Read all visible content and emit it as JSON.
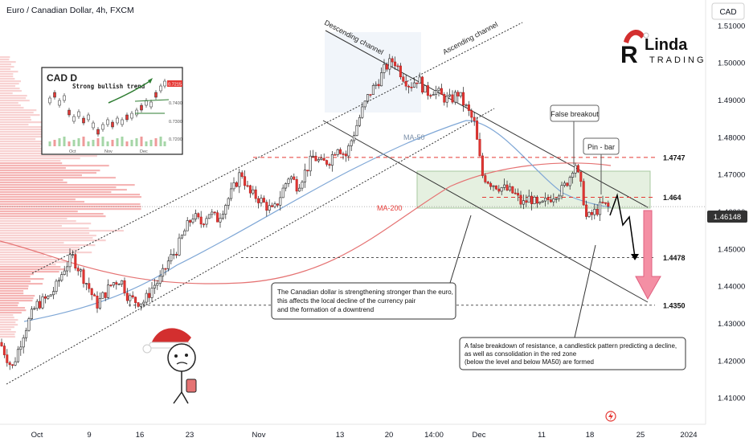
{
  "header": {
    "title": "Euro / Canadian Dollar, 4h, FXCM",
    "currency_badge": "CAD"
  },
  "brand": {
    "logo_letters": "Linda",
    "logo_sub": "TRADING"
  },
  "chart_data": {
    "type": "candlestick",
    "title": "Euro / Canadian Dollar, 4h, FXCM",
    "y_axis": {
      "unit": "CAD",
      "ylim": [
        1.403,
        1.517
      ],
      "ticks": [
        1.41,
        1.42,
        1.43,
        1.44,
        1.45,
        1.46,
        1.47,
        1.48,
        1.49,
        1.5,
        1.51
      ],
      "tick_labels": [
        "1.41000",
        "1.42000",
        "1.43000",
        "1.44000",
        "1.45000",
        "1.46000",
        "1.47000",
        "1.48000",
        "1.49000",
        "1.50000",
        "1.51000"
      ]
    },
    "x_axis": {
      "tick_labels": [
        "Oct",
        "9",
        "16",
        "23",
        "Nov",
        "13",
        "20",
        "14:00",
        "Dec",
        "11",
        "18",
        "25",
        "2024"
      ]
    },
    "current_price": {
      "value": 1.46148,
      "label": "1.46148"
    },
    "levels": [
      {
        "name": "resistance",
        "value": 1.4747,
        "label": "1.4747",
        "color": "#e53935"
      },
      {
        "name": "breakout-level",
        "value": 1.464,
        "label": "1.464",
        "color": "#e53935"
      },
      {
        "name": "target-1",
        "value": 1.4478,
        "label": "1.4478",
        "color": "#555555"
      },
      {
        "name": "target-2",
        "value": 1.435,
        "label": "1.4350",
        "color": "#555555"
      }
    ],
    "indicators": [
      {
        "name": "MA-50",
        "label": "MA-50",
        "color": "#7fa7d6"
      },
      {
        "name": "MA-200",
        "label": "MA-200",
        "color": "#e57373"
      }
    ],
    "channels": [
      {
        "name": "ascending",
        "label": "Ascending channel"
      },
      {
        "name": "descending",
        "label": "Descending channel"
      }
    ],
    "annotations": {
      "false_breakout": "False breakout",
      "pin_bar": "Pin - bar",
      "note_left": [
        "The Canadian dollar is strengthening stronger than the euro,",
        "this affects the local decline of the currency pair",
        "and the formation of a downtrend"
      ],
      "note_right": [
        "A false breakdown of resistance, a candlestick pattern predicting a decline,",
        "as well as consolidation in the red zone",
        "(below the level and below MA50) are formed"
      ]
    },
    "close_path": [
      [
        0,
        1.425
      ],
      [
        15,
        1.418
      ],
      [
        30,
        1.428
      ],
      [
        45,
        1.435
      ],
      [
        60,
        1.437
      ],
      [
        70,
        1.44
      ],
      [
        80,
        1.445
      ],
      [
        90,
        1.448
      ],
      [
        100,
        1.444
      ],
      [
        110,
        1.44
      ],
      [
        120,
        1.435
      ],
      [
        130,
        1.438
      ],
      [
        140,
        1.441
      ],
      [
        150,
        1.442
      ],
      [
        160,
        1.437
      ],
      [
        170,
        1.436
      ],
      [
        180,
        1.436
      ],
      [
        190,
        1.44
      ],
      [
        200,
        1.442
      ],
      [
        210,
        1.447
      ],
      [
        220,
        1.45
      ],
      [
        230,
        1.455
      ],
      [
        240,
        1.459
      ],
      [
        250,
        1.457
      ],
      [
        260,
        1.46
      ],
      [
        270,
        1.458
      ],
      [
        280,
        1.462
      ],
      [
        290,
        1.466
      ],
      [
        300,
        1.471
      ],
      [
        310,
        1.465
      ],
      [
        320,
        1.464
      ],
      [
        330,
        1.462
      ],
      [
        340,
        1.46
      ],
      [
        350,
        1.465
      ],
      [
        360,
        1.47
      ],
      [
        370,
        1.467
      ],
      [
        380,
        1.471
      ],
      [
        390,
        1.475
      ],
      [
        400,
        1.473
      ],
      [
        410,
        1.474
      ],
      [
        420,
        1.478
      ],
      [
        430,
        1.475
      ],
      [
        440,
        1.481
      ],
      [
        450,
        1.487
      ],
      [
        460,
        1.492
      ],
      [
        470,
        1.495
      ],
      [
        480,
        1.499
      ],
      [
        490,
        1.501
      ],
      [
        500,
        1.497
      ],
      [
        510,
        1.494
      ],
      [
        520,
        1.496
      ],
      [
        530,
        1.492
      ],
      [
        540,
        1.493
      ],
      [
        550,
        1.491
      ],
      [
        560,
        1.49
      ],
      [
        570,
        1.492
      ],
      [
        580,
        1.488
      ],
      [
        590,
        1.484
      ],
      [
        600,
        1.47
      ],
      [
        610,
        1.468
      ],
      [
        620,
        1.467
      ],
      [
        630,
        1.466
      ],
      [
        640,
        1.465
      ],
      [
        650,
        1.462
      ],
      [
        660,
        1.464
      ],
      [
        670,
        1.461
      ],
      [
        680,
        1.463
      ],
      [
        690,
        1.465
      ],
      [
        700,
        1.466
      ],
      [
        710,
        1.47
      ],
      [
        715,
        1.474
      ],
      [
        720,
        1.469
      ],
      [
        725,
        1.465
      ],
      [
        730,
        1.458
      ],
      [
        740,
        1.46
      ],
      [
        750,
        1.462
      ],
      [
        760,
        1.461
      ]
    ]
  },
  "inset": {
    "title": "CAD D",
    "subtitle": "Strong bullish trend",
    "y_labels": [
      "0.7400",
      "0.7300",
      "0.7200"
    ],
    "price_tag": "0.7215",
    "x_labels": [
      "Oct",
      "Nov",
      "Dec"
    ]
  },
  "footer": {
    "tv_icon": "lightning-icon"
  }
}
